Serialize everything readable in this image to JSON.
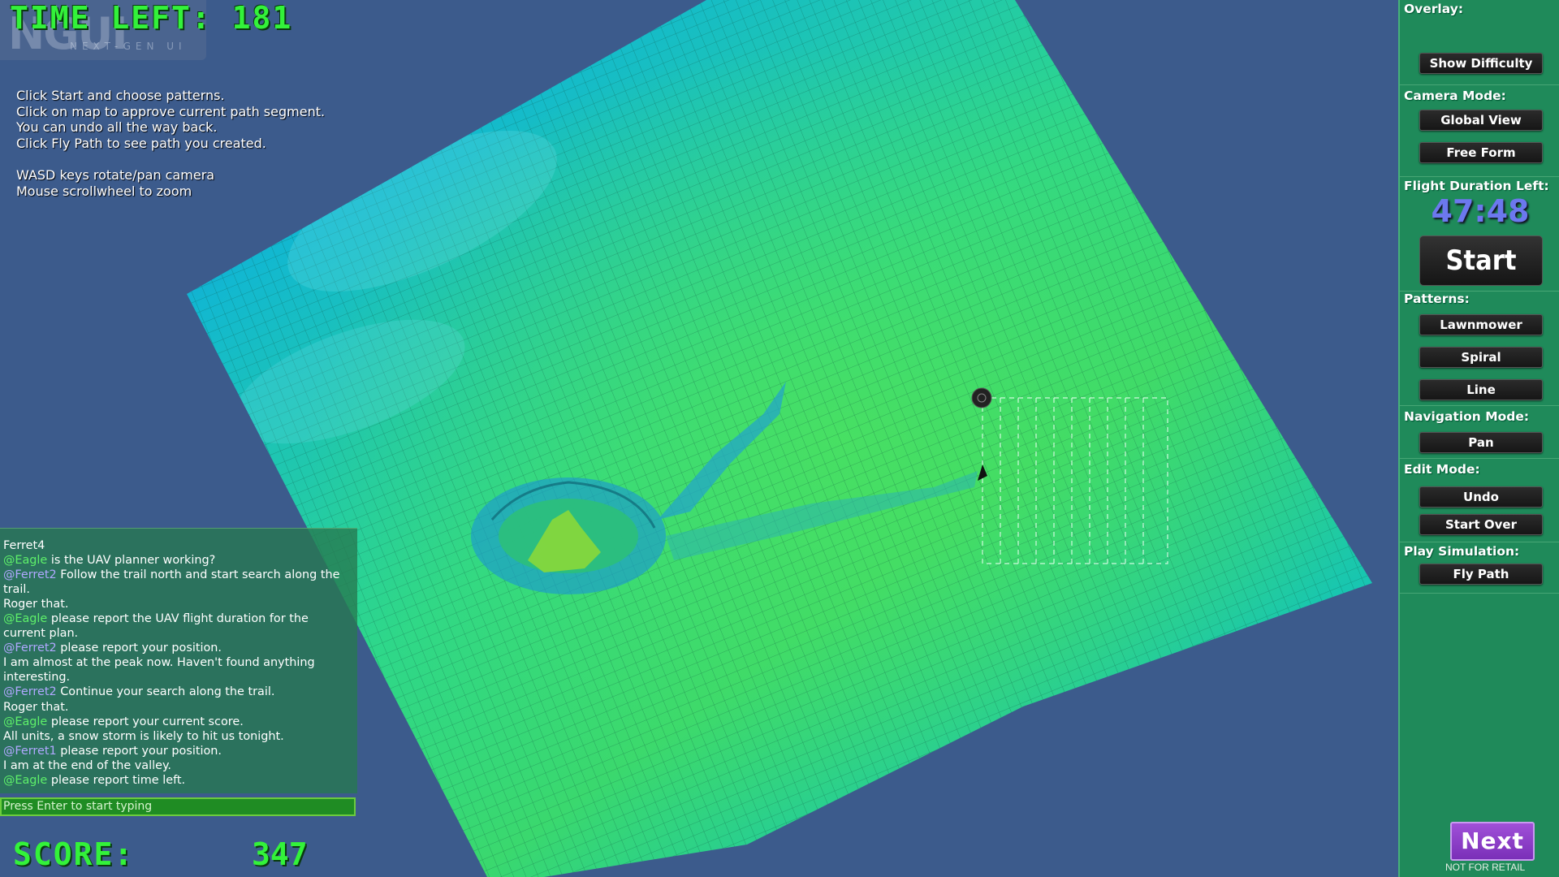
{
  "hud": {
    "time_left_label": "TIME LEFT:",
    "time_left_value": "181",
    "logo_text": "NGUI",
    "logo_subtitle": "NEXT-GEN UI",
    "score_label": "SCORE:",
    "score_value": "347"
  },
  "instructions": [
    "Click Start and choose patterns.",
    "Click on map to approve current path segment.",
    "You can undo all the way back.",
    "Click Fly Path to see path you created.",
    "",
    "WASD keys rotate/pan camera",
    "Mouse scrollwheel to zoom"
  ],
  "chat": {
    "header": "Ferret4",
    "messages": [
      {
        "mention": "@Eagle",
        "text": " is the UAV planner working?"
      },
      {
        "mention": "@Ferret2",
        "text": " Follow the trail north and start search along the trail."
      },
      {
        "mention": "",
        "text": " Roger that."
      },
      {
        "mention": "@Eagle",
        "text": " please report the UAV flight duration for the current plan."
      },
      {
        "mention": "@Ferret2",
        "text": " please report your position."
      },
      {
        "mention": "",
        "text": " I am almost at the peak now. Haven't found anything interesting."
      },
      {
        "mention": "@Ferret2",
        "text": " Continue your search along the trail."
      },
      {
        "mention": "",
        "text": " Roger that."
      },
      {
        "mention": "@Eagle",
        "text": " please report your current score."
      },
      {
        "mention": "",
        "text": " All units, a snow storm is likely to hit us tonight."
      },
      {
        "mention": "@Ferret1",
        "text": " please report your position."
      },
      {
        "mention": "",
        "text": " I am at the end of the valley."
      },
      {
        "mention": "@Eagle",
        "text": " please report time left."
      }
    ],
    "input_placeholder": "Press Enter to start typing"
  },
  "panel": {
    "overlay_title": "Overlay:",
    "show_difficulty": "Show Difficulty",
    "camera_title": "Camera Mode:",
    "global_view": "Global View",
    "free_form": "Free Form",
    "flight_title": "Flight Duration Left:",
    "flight_duration": "47:48",
    "start": "Start",
    "patterns_title": "Patterns:",
    "lawnmower": "Lawnmower",
    "spiral": "Spiral",
    "line": "Line",
    "navigation_title": "Navigation Mode:",
    "pan": "Pan",
    "edit_title": "Edit Mode:",
    "undo": "Undo",
    "start_over": "Start Over",
    "play_title": "Play Simulation:",
    "fly_path": "Fly Path",
    "next": "Next",
    "not_for_retail": "NOT FOR RETAIL"
  },
  "colors": {
    "background": "#3c5b8c",
    "hud_green": "#33f23a",
    "panel": "#1f8a5a",
    "timer": "#6c78ee",
    "next_button": "#8a3cc8"
  }
}
